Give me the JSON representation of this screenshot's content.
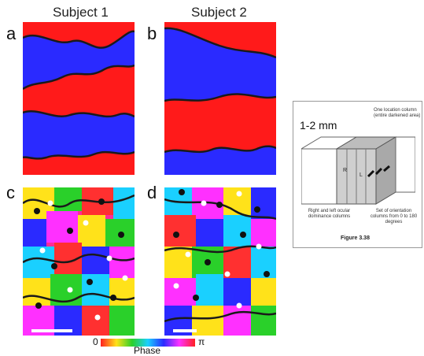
{
  "headers": {
    "subject1": "Subject 1",
    "subject2": "Subject 2"
  },
  "panels": {
    "a": "a",
    "b": "b",
    "c": "c",
    "d": "d"
  },
  "colorbar": {
    "min": "0",
    "max": "π",
    "title": "Phase"
  },
  "figure": {
    "scale": "1-2 mm",
    "location_column": "One location column (entire darkened area)",
    "label_r": "R",
    "label_l": "L",
    "ocular": "Right and left ocular dominance columns",
    "orientation": "Set of orientation columns from 0 to 180 degrees",
    "caption": "Figure 3.38"
  },
  "colors": {
    "red": "#ff1a1a",
    "blue": "#2a2aff",
    "contour": "#1a1a1a"
  }
}
